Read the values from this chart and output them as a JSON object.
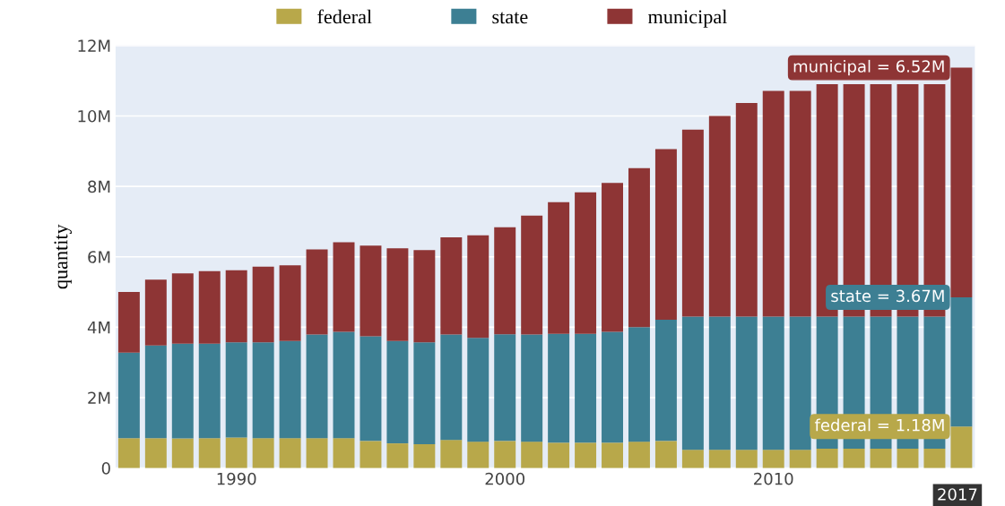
{
  "chart_data": {
    "type": "bar",
    "stacked": true,
    "ylabel": "quantity",
    "x": [
      1986,
      1987,
      1988,
      1989,
      1990,
      1991,
      1992,
      1993,
      1994,
      1995,
      1996,
      1997,
      1998,
      1999,
      2000,
      2001,
      2002,
      2003,
      2004,
      2005,
      2006,
      2007,
      2008,
      2009,
      2010,
      2011,
      2012,
      2013,
      2014,
      2015,
      2016,
      2017
    ],
    "series": [
      {
        "name": "federal",
        "color": "#b8a84a",
        "values": [
          850000,
          850000,
          840000,
          850000,
          870000,
          850000,
          850000,
          850000,
          850000,
          770000,
          700000,
          680000,
          800000,
          750000,
          770000,
          750000,
          720000,
          720000,
          720000,
          750000,
          770000,
          520000,
          520000,
          520000,
          520000,
          520000,
          550000,
          550000,
          550000,
          550000,
          550000,
          1180000
        ]
      },
      {
        "name": "state",
        "color": "#3d7f93",
        "values": [
          2430000,
          2630000,
          2690000,
          2680000,
          2700000,
          2720000,
          2760000,
          2940000,
          3020000,
          2970000,
          2910000,
          2890000,
          2990000,
          2950000,
          3030000,
          3040000,
          3090000,
          3090000,
          3150000,
          3250000,
          3440000,
          3780000,
          3780000,
          3780000,
          3780000,
          3780000,
          3750000,
          3750000,
          3750000,
          3750000,
          3750000,
          3670000
        ]
      },
      {
        "name": "municipal",
        "color": "#8e3535",
        "values": [
          1720000,
          1870000,
          2000000,
          2060000,
          2050000,
          2150000,
          2150000,
          2420000,
          2540000,
          2580000,
          2630000,
          2620000,
          2760000,
          2910000,
          3040000,
          3380000,
          3740000,
          4020000,
          4230000,
          4520000,
          4850000,
          5310000,
          5700000,
          6070000,
          6410000,
          6410000,
          6600000,
          6600000,
          6600000,
          6600000,
          6600000,
          6520000
        ]
      }
    ],
    "xlim": [
      1985.5,
      2017.5
    ],
    "xticks": [
      1990,
      2000,
      2010
    ],
    "ylim": [
      0,
      12000000
    ],
    "yticks": [
      {
        "value": 0,
        "label": "0"
      },
      {
        "value": 2000000,
        "label": "2M"
      },
      {
        "value": 4000000,
        "label": "4M"
      },
      {
        "value": 6000000,
        "label": "6M"
      },
      {
        "value": 8000000,
        "label": "8M"
      },
      {
        "value": 10000000,
        "label": "10M"
      },
      {
        "value": 12000000,
        "label": "12M"
      }
    ],
    "grid": "y",
    "legend": "top",
    "annotations": [
      "federal = 1.18M",
      "state = 3.67M",
      "municipal = 6.52M",
      "2017"
    ]
  }
}
